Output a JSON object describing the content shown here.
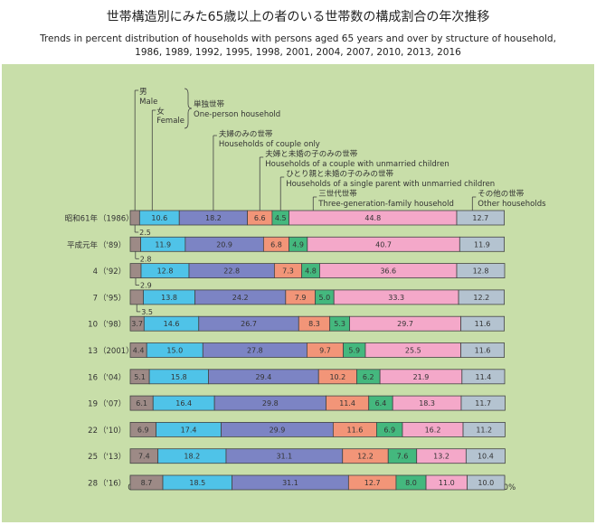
{
  "title_ja": "世帯構造別にみた65歳以上の者のいる世帯数の構成割合の年次推移",
  "title_en_line1": "Trends in percent distribution of households with persons aged 65 years and over by structure of household,",
  "title_en_line2": "1986, 1989, 1992, 1995, 1998, 2001, 2004, 2007, 2010, 2013, 2016",
  "chart_data": {
    "type": "bar",
    "orientation": "horizontal",
    "stacked": true,
    "xlim": [
      0,
      100
    ],
    "x_ticks": [
      "0",
      "20",
      "40",
      "60",
      "80",
      "100%"
    ],
    "categories": [
      "昭和61年（1986）",
      "平成元年（'89）",
      "4（'92）",
      "7（'95）",
      "10（'98）",
      "13（2001）",
      "16（'04）",
      "19（'07）",
      "22（'10）",
      "25（'13）",
      "28（'16）"
    ],
    "row_labels": [
      {
        "era": "昭和61年",
        "year": "（1986）"
      },
      {
        "era": "平成元年",
        "year": "（'89）"
      },
      {
        "era": "4",
        "year": "（'92）"
      },
      {
        "era": "7",
        "year": "（'95）"
      },
      {
        "era": "10",
        "year": "（'98）"
      },
      {
        "era": "13",
        "year": "（2001）"
      },
      {
        "era": "16",
        "year": "（'04）"
      },
      {
        "era": "19",
        "year": "（'07）"
      },
      {
        "era": "22",
        "year": "（'10）"
      },
      {
        "era": "25",
        "year": "（'13）"
      },
      {
        "era": "28",
        "year": "（'16）"
      }
    ],
    "series": [
      {
        "name": "男 Male",
        "color": "#9d8a86",
        "values": [
          2.5,
          2.8,
          2.9,
          3.5,
          3.7,
          4.4,
          5.1,
          6.1,
          6.9,
          7.4,
          8.7
        ]
      },
      {
        "name": "女 Female",
        "color": "#4fc3e8",
        "values": [
          10.6,
          11.9,
          12.8,
          13.8,
          14.6,
          15.0,
          15.8,
          16.4,
          17.4,
          18.2,
          18.5
        ]
      },
      {
        "name": "夫婦のみの世帯 Households of couple only",
        "color": "#7c84c4",
        "values": [
          18.2,
          20.9,
          22.8,
          24.2,
          26.7,
          27.8,
          29.4,
          29.8,
          29.9,
          31.1,
          31.1
        ]
      },
      {
        "name": "夫婦と未婚の子のみの世帯 Households of a couple with unmarried children",
        "color": "#f29578",
        "values": [
          6.6,
          6.8,
          7.3,
          7.9,
          8.3,
          9.7,
          10.2,
          11.4,
          11.6,
          12.2,
          12.7
        ]
      },
      {
        "name": "ひとり親と未婚の子のみの世帯 Households of a single parent with unmarried children",
        "color": "#44b87e",
        "values": [
          4.5,
          4.9,
          4.8,
          5.0,
          5.3,
          5.9,
          6.2,
          6.4,
          6.9,
          7.6,
          8.0
        ]
      },
      {
        "name": "三世代世帯 Three-generation-family household",
        "color": "#f4a8c9",
        "values": [
          44.8,
          40.7,
          36.6,
          33.3,
          29.7,
          25.5,
          21.9,
          18.3,
          16.2,
          13.2,
          11.0
        ]
      },
      {
        "name": "その他の世帯 Other households",
        "color": "#b4c3d0",
        "values": [
          12.7,
          11.9,
          12.8,
          12.2,
          11.6,
          11.6,
          11.4,
          11.7,
          11.2,
          10.4,
          10.0
        ]
      }
    ],
    "legend": {
      "male_ja": "男",
      "male_en": "Male",
      "female_ja": "女",
      "female_en": "Female",
      "one_person_ja": "単独世帯",
      "one_person_en": "One-person household",
      "couple_ja": "夫婦のみの世帯",
      "couple_en": "Households of couple only",
      "couple_child_ja": "夫婦と未婚の子のみの世帯",
      "couple_child_en": "Households of a couple with unmarried children",
      "single_parent_ja": "ひとり親と未婚の子のみの世帯",
      "single_parent_en": "Households of a single parent with unmarried children",
      "three_gen_ja": "三世代世帯",
      "three_gen_en": "Three-generation-family household",
      "other_ja": "その他の世帯",
      "other_en": "Other households"
    }
  }
}
